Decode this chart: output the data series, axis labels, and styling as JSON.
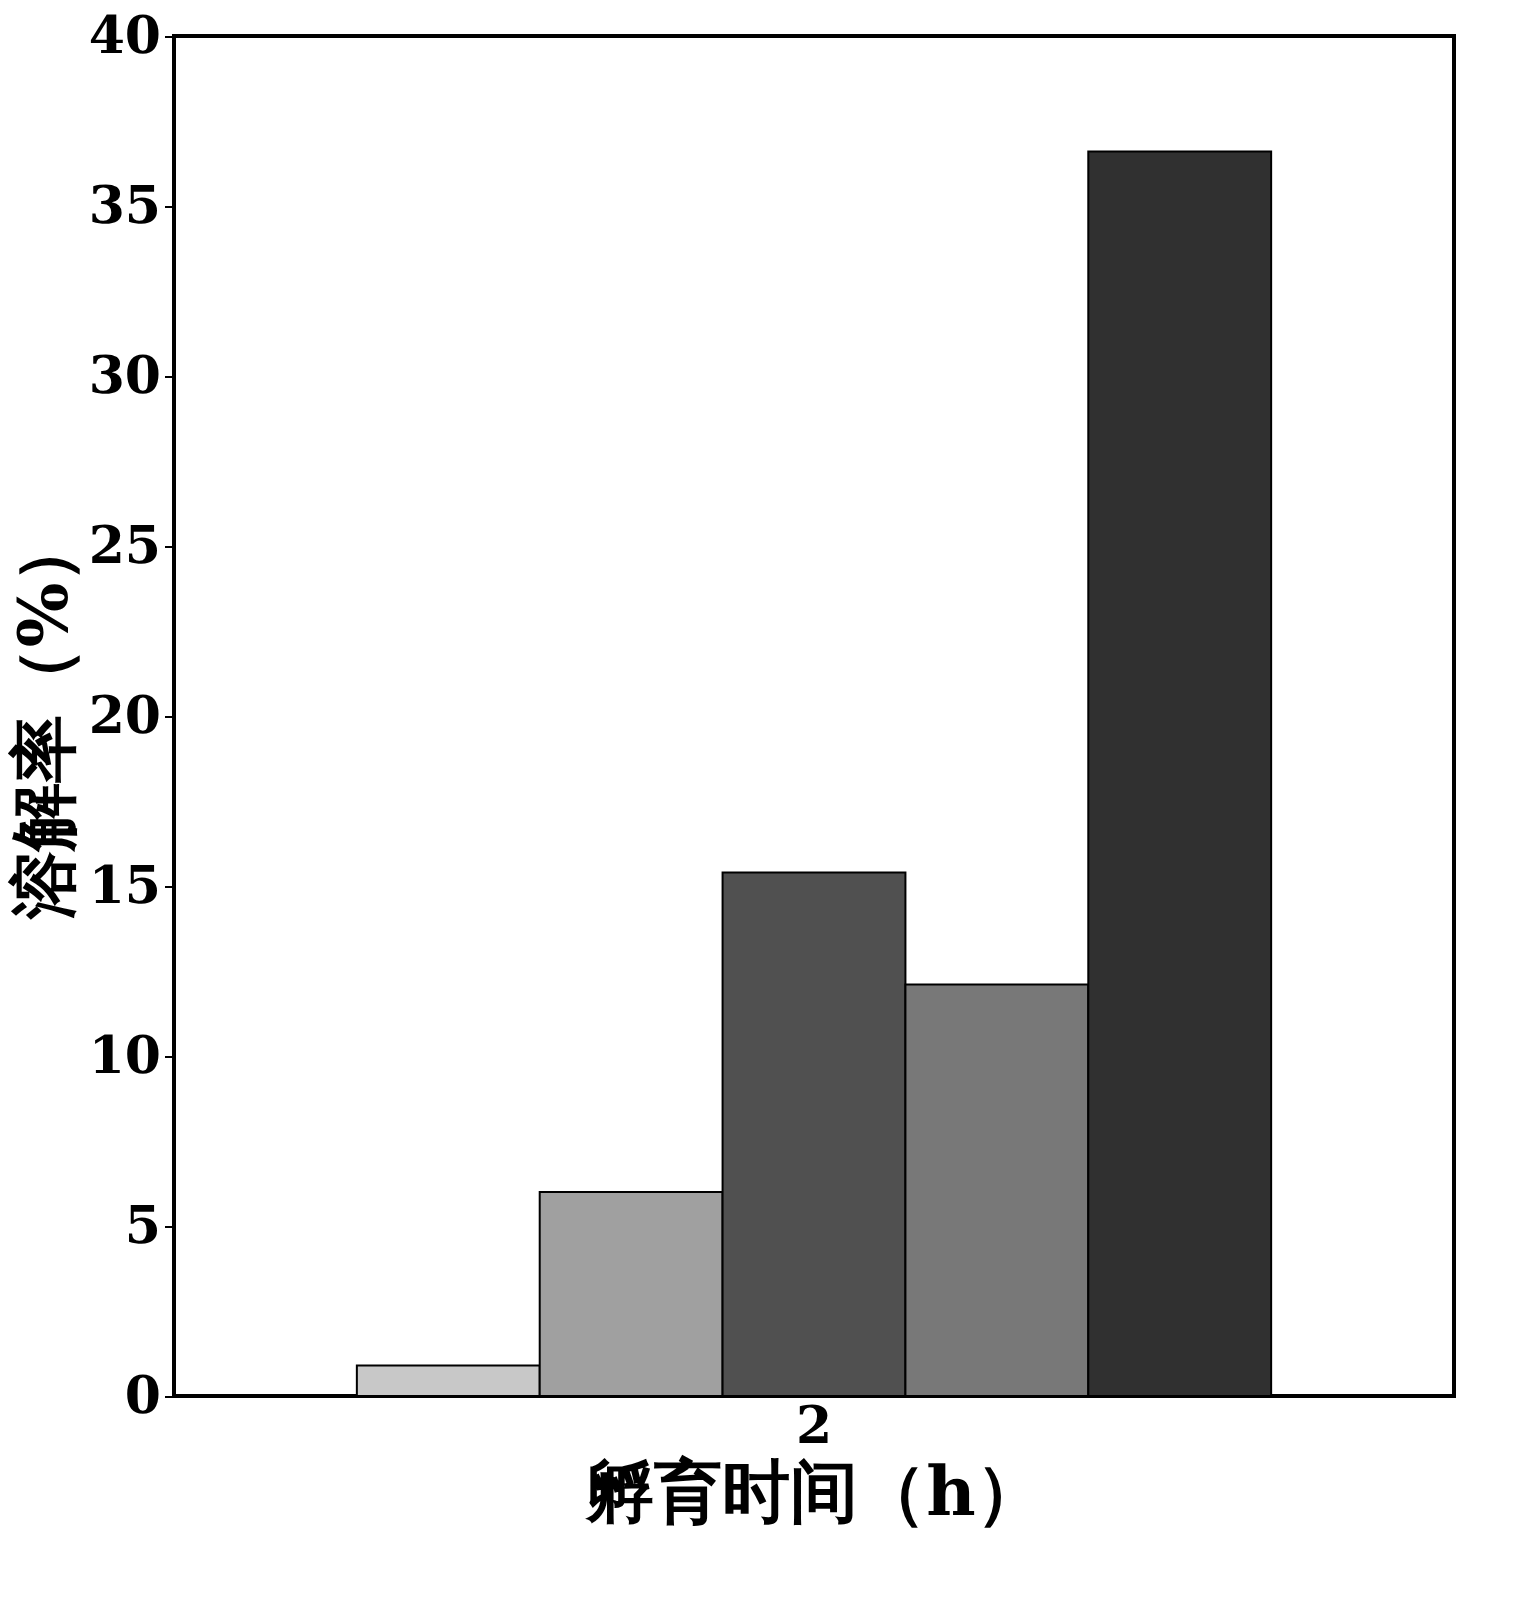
{
  "chart_data": {
    "type": "bar",
    "xlabel": "孵育时间（h）",
    "ylabel": "溶解率（%）",
    "categories": [
      null,
      null,
      "2",
      null,
      null
    ],
    "values": [
      0.9,
      6.0,
      15.4,
      12.1,
      36.6
    ],
    "colors": [
      "#c8c8c8",
      "#a0a0a0",
      "#505050",
      "#787878",
      "#303030"
    ],
    "ylim": [
      0,
      40
    ],
    "yticks": [
      0,
      5,
      10,
      15,
      20,
      25,
      30,
      35,
      40
    ],
    "grid": false,
    "legend": false
  }
}
